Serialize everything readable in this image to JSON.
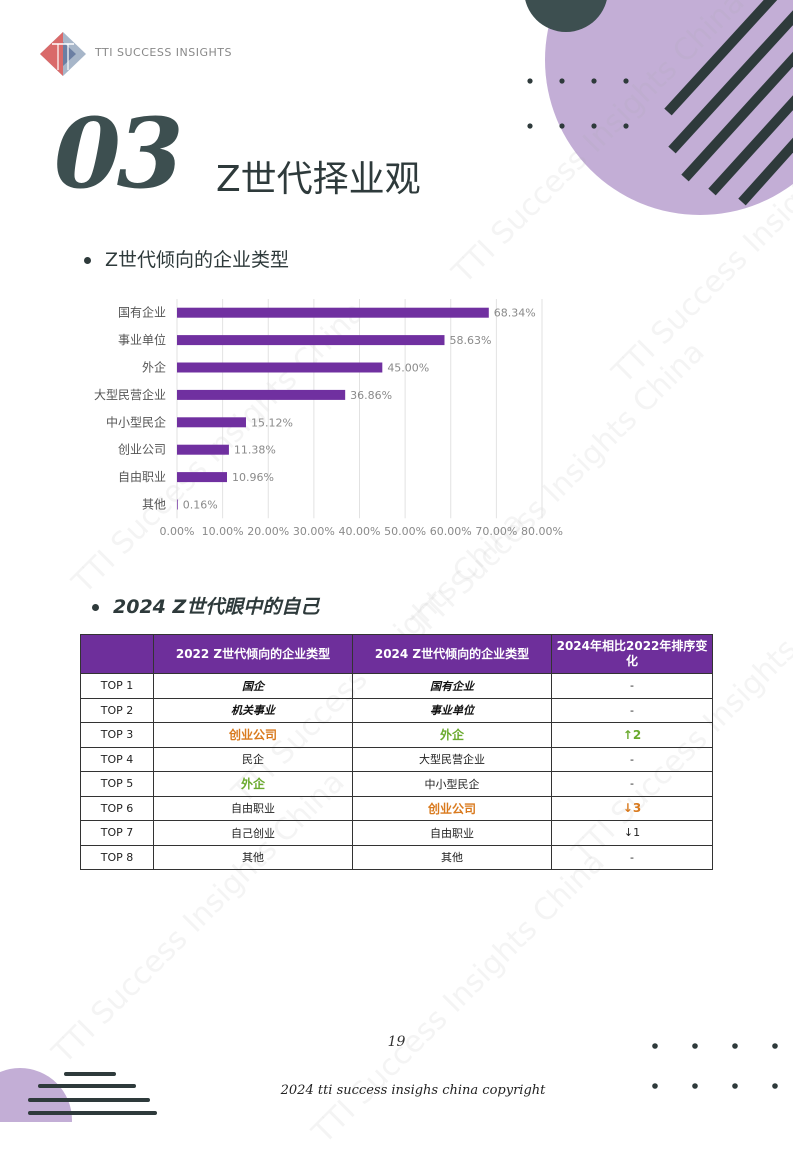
{
  "brand": {
    "name": "TTI SUCCESS INSIGHTS"
  },
  "section": {
    "number": "03",
    "title": "Z世代择业观"
  },
  "bullet1": "Z世代倾向的企业类型",
  "bullet2": "2024 Z世代眼中的自己",
  "watermark_text": "TTI Success Insights China",
  "chart_data": {
    "type": "bar",
    "orientation": "horizontal",
    "categories": [
      "国有企业",
      "事业单位",
      "外企",
      "大型民营企业",
      "中小型民企",
      "创业公司",
      "自由职业",
      "其他"
    ],
    "values": [
      68.34,
      58.63,
      45.0,
      36.86,
      15.12,
      11.38,
      10.96,
      0.16
    ],
    "value_labels": [
      "68.34%",
      "58.63%",
      "45.00%",
      "36.86%",
      "15.12%",
      "11.38%",
      "10.96%",
      "0.16%"
    ],
    "xlim": [
      0,
      80
    ],
    "x_ticks": [
      "0.00%",
      "10.00%",
      "20.00%",
      "30.00%",
      "40.00%",
      "50.00%",
      "60.00%",
      "70.00%",
      "80.00%"
    ],
    "grid": true,
    "bar_color": "#7030a0"
  },
  "table": {
    "headers": [
      "",
      "2022 Z世代倾向的企业类型",
      "2024 Z世代倾向的企业类型",
      "2024年相比2022年排序变化"
    ],
    "rows": [
      {
        "rank": "TOP 1",
        "y2022": "国企",
        "s2022": "strong",
        "y2024": "国有企业",
        "s2024": "strong",
        "change": "-",
        "sc": ""
      },
      {
        "rank": "TOP 2",
        "y2022": "机关事业",
        "s2022": "strong",
        "y2024": "事业单位",
        "s2024": "strong",
        "change": "-",
        "sc": ""
      },
      {
        "rank": "TOP 3",
        "y2022": "创业公司",
        "s2022": "orange",
        "y2024": "外企",
        "s2024": "green",
        "change": "↑2",
        "sc": "chg-green"
      },
      {
        "rank": "TOP 4",
        "y2022": "民企",
        "s2022": "",
        "y2024": "大型民营企业",
        "s2024": "",
        "change": "-",
        "sc": ""
      },
      {
        "rank": "TOP 5",
        "y2022": "外企",
        "s2022": "green",
        "y2024": "中小型民企",
        "s2024": "",
        "change": "-",
        "sc": ""
      },
      {
        "rank": "TOP 6",
        "y2022": "自由职业",
        "s2022": "",
        "y2024": "创业公司",
        "s2024": "orange",
        "change": "↓3",
        "sc": "chg-orange"
      },
      {
        "rank": "TOP 7",
        "y2022": "自己创业",
        "s2022": "",
        "y2024": "自由职业",
        "s2024": "",
        "change": "↓1",
        "sc": ""
      },
      {
        "rank": "TOP 8",
        "y2022": "其他",
        "s2022": "",
        "y2024": "其他",
        "s2024": "",
        "change": "-",
        "sc": ""
      }
    ]
  },
  "footer": {
    "page_number": "19",
    "copyright": "2024 tti success insighs china copyright"
  },
  "colors": {
    "accent": "#3d4f50",
    "purple_light": "#c3aed6",
    "purple_bar": "#7030a0",
    "table_header": "#6e2f9b"
  }
}
